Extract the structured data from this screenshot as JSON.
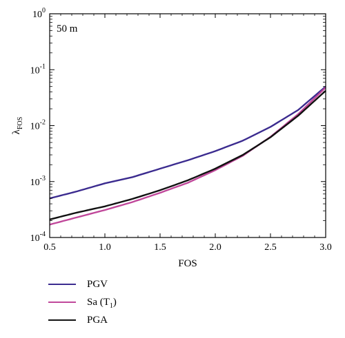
{
  "chart_data": {
    "type": "line",
    "annotation": "50 m",
    "xlabel": "FOS",
    "ylabel": "λ",
    "ylabel_sub": "FOS",
    "xlim": [
      0.5,
      3.0
    ],
    "ylim": [
      0.0001,
      1
    ],
    "yscale": "log",
    "x_ticks": [
      "0.5",
      "1.0",
      "1.5",
      "2.0",
      "2.5",
      "3.0"
    ],
    "x_tick_values": [
      0.5,
      1.0,
      1.5,
      2.0,
      2.5,
      3.0
    ],
    "y_tick_values": [
      0.0001,
      0.001,
      0.01,
      0.1,
      1
    ],
    "y_tick_base": "10",
    "y_tick_exponents": [
      "-4",
      "-3",
      "-2",
      "-1",
      "0"
    ],
    "legend_position": "below",
    "series": [
      {
        "name": "PGV",
        "color": "#3b2b8f",
        "x": [
          0.5,
          0.75,
          1.0,
          1.25,
          1.5,
          1.75,
          2.0,
          2.25,
          2.5,
          2.75,
          3.0
        ],
        "y": [
          0.0005,
          0.00067,
          0.00093,
          0.0012,
          0.0017,
          0.0024,
          0.0035,
          0.0054,
          0.0095,
          0.019,
          0.05
        ]
      },
      {
        "name": "Sa (T",
        "name_sub": "1",
        "name_suffix": ")",
        "color": "#c0479a",
        "x": [
          0.5,
          0.75,
          1.0,
          1.25,
          1.5,
          1.75,
          2.0,
          2.25,
          2.5,
          2.75,
          3.0
        ],
        "y": [
          0.00017,
          0.00023,
          0.00031,
          0.00043,
          0.00063,
          0.00095,
          0.0016,
          0.0029,
          0.0063,
          0.016,
          0.048
        ]
      },
      {
        "name": "PGA",
        "color": "#111111",
        "x": [
          0.5,
          0.75,
          1.0,
          1.25,
          1.5,
          1.75,
          2.0,
          2.25,
          2.5,
          2.75,
          3.0
        ],
        "y": [
          0.00021,
          0.00028,
          0.00036,
          0.00049,
          0.0007,
          0.00105,
          0.0017,
          0.003,
          0.0062,
          0.015,
          0.042
        ]
      }
    ]
  }
}
